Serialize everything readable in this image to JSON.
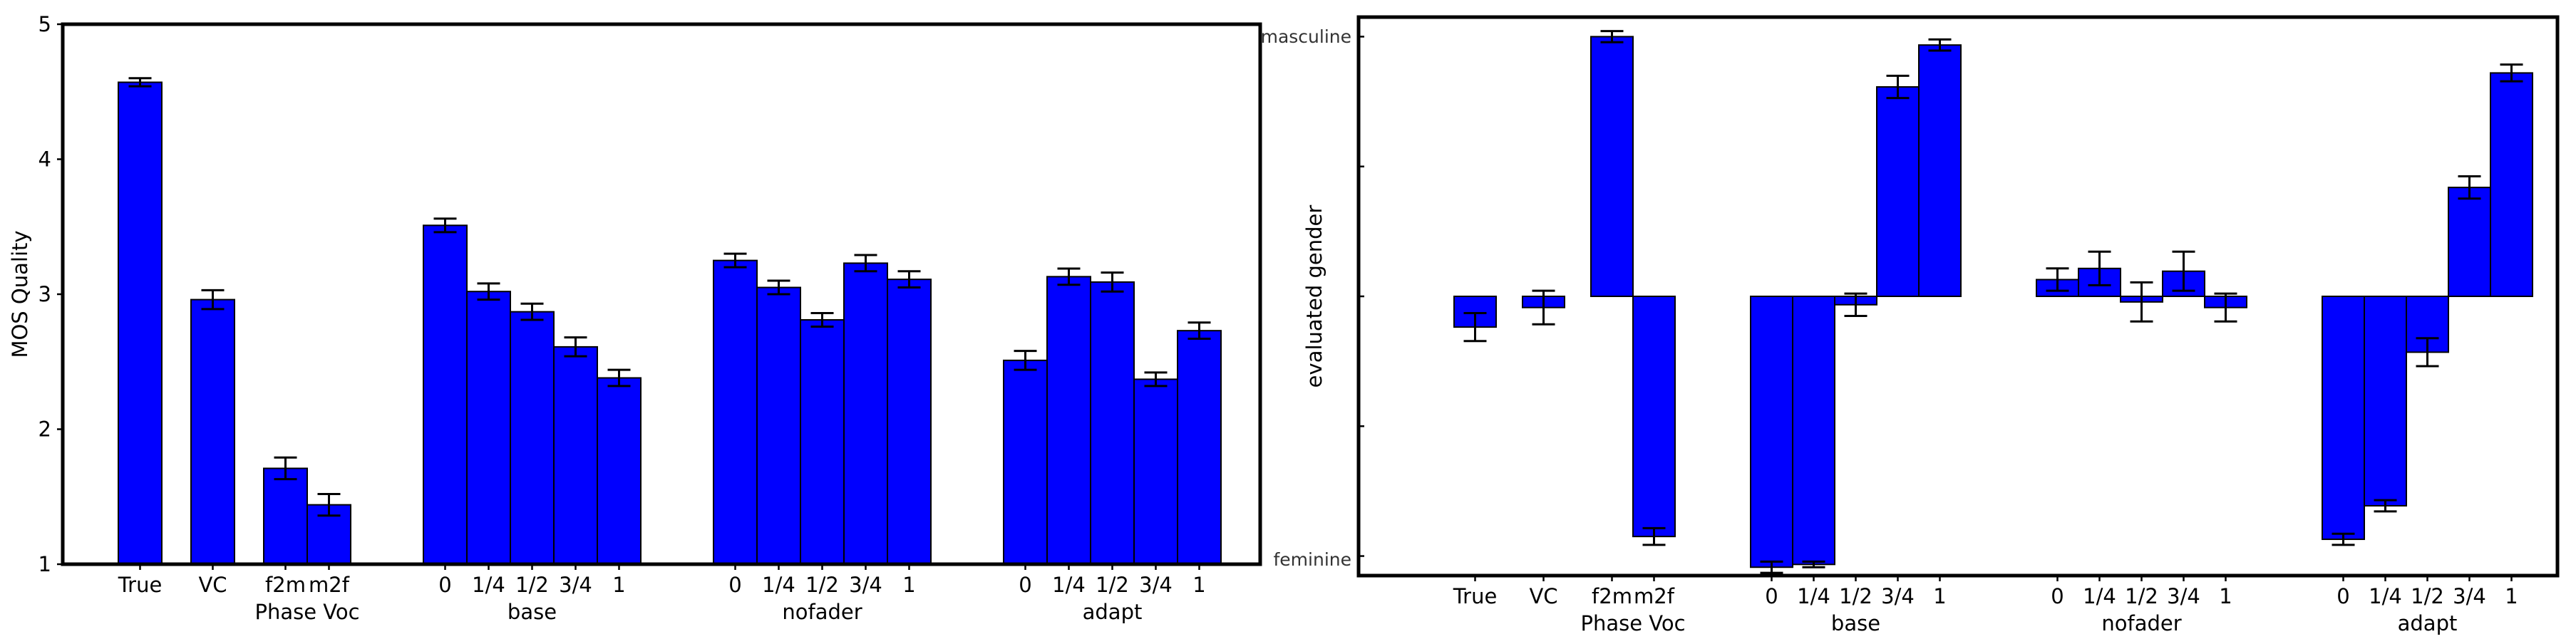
{
  "colors": {
    "bar": "#0000ff",
    "edge": "#000000",
    "background": "#ffffff"
  },
  "chart_data": [
    {
      "type": "bar",
      "ylabel": "MOS Quality",
      "ylim": [
        1,
        5
      ],
      "yticks": [
        "1",
        "2",
        "3",
        "4",
        "5"
      ],
      "grid": false,
      "groups": [
        {
          "label": "",
          "bars": [
            {
              "label": "True",
              "value": 4.57,
              "err": 0.03
            }
          ]
        },
        {
          "label": "",
          "bars": [
            {
              "label": "VC",
              "value": 2.96,
              "err": 0.07
            }
          ]
        },
        {
          "label": "Phase Voc",
          "bars": [
            {
              "label": "f2m",
              "value": 1.71,
              "err": 0.08
            },
            {
              "label": "m2f",
              "value": 1.44,
              "err": 0.08
            }
          ]
        },
        {
          "label": "base",
          "bars": [
            {
              "label": "0",
              "value": 3.51,
              "err": 0.05
            },
            {
              "label": "1/4",
              "value": 3.02,
              "err": 0.06
            },
            {
              "label": "1/2",
              "value": 2.87,
              "err": 0.06
            },
            {
              "label": "3/4",
              "value": 2.61,
              "err": 0.07
            },
            {
              "label": "1",
              "value": 2.38,
              "err": 0.06
            }
          ]
        },
        {
          "label": "nofader",
          "bars": [
            {
              "label": "0",
              "value": 3.25,
              "err": 0.05
            },
            {
              "label": "1/4",
              "value": 3.05,
              "err": 0.05
            },
            {
              "label": "1/2",
              "value": 2.81,
              "err": 0.05
            },
            {
              "label": "3/4",
              "value": 3.23,
              "err": 0.06
            },
            {
              "label": "1",
              "value": 3.11,
              "err": 0.06
            }
          ]
        },
        {
          "label": "adapt",
          "bars": [
            {
              "label": "0",
              "value": 2.51,
              "err": 0.07
            },
            {
              "label": "1/4",
              "value": 3.13,
              "err": 0.06
            },
            {
              "label": "1/2",
              "value": 3.09,
              "err": 0.07
            },
            {
              "label": "3/4",
              "value": 2.37,
              "err": 0.05
            },
            {
              "label": "1",
              "value": 2.73,
              "err": 0.06
            }
          ]
        }
      ]
    },
    {
      "type": "bar",
      "ylabel": "evaluated gender",
      "ylim": [
        -1,
        1
      ],
      "top_label": "masculine",
      "bottom_label": "feminine",
      "grid": false,
      "groups": [
        {
          "label": "",
          "bars": [
            {
              "label": "True",
              "value": -0.11,
              "err": 0.05
            }
          ]
        },
        {
          "label": "",
          "bars": [
            {
              "label": "VC",
              "value": -0.04,
              "err": 0.06
            }
          ]
        },
        {
          "label": "Phase Voc",
          "bars": [
            {
              "label": "f2m",
              "value": 0.93,
              "err": 0.02
            },
            {
              "label": "m2f",
              "value": -0.86,
              "err": 0.03
            }
          ]
        },
        {
          "label": "base",
          "bars": [
            {
              "label": "0",
              "value": -0.97,
              "err": 0.02
            },
            {
              "label": "1/4",
              "value": -0.96,
              "err": 0.01
            },
            {
              "label": "1/2",
              "value": -0.03,
              "err": 0.04
            },
            {
              "label": "3/4",
              "value": 0.75,
              "err": 0.04
            },
            {
              "label": "1",
              "value": 0.9,
              "err": 0.02
            }
          ]
        },
        {
          "label": "nofader",
          "bars": [
            {
              "label": "0",
              "value": 0.06,
              "err": 0.04
            },
            {
              "label": "1/4",
              "value": 0.1,
              "err": 0.06
            },
            {
              "label": "1/2",
              "value": -0.02,
              "err": 0.07
            },
            {
              "label": "3/4",
              "value": 0.09,
              "err": 0.07
            },
            {
              "label": "1",
              "value": -0.04,
              "err": 0.05
            }
          ]
        },
        {
          "label": "adapt",
          "bars": [
            {
              "label": "0",
              "value": -0.87,
              "err": 0.02
            },
            {
              "label": "1/4",
              "value": -0.75,
              "err": 0.02
            },
            {
              "label": "1/2",
              "value": -0.2,
              "err": 0.05
            },
            {
              "label": "3/4",
              "value": 0.39,
              "err": 0.04
            },
            {
              "label": "1",
              "value": 0.8,
              "err": 0.03
            }
          ]
        }
      ]
    }
  ]
}
